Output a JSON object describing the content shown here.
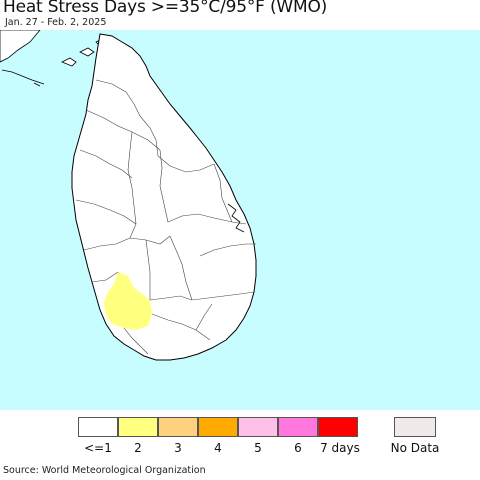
{
  "header": {
    "title": "Heat Stress Days >=35°C/95°F (WMO)",
    "date_range": "Jan. 27 - Feb. 2, 2025"
  },
  "legend": {
    "items": [
      {
        "label": "<=1",
        "color": "#ffffff"
      },
      {
        "label": "2",
        "color": "#ffff80"
      },
      {
        "label": "3",
        "color": "#ffd080"
      },
      {
        "label": "4",
        "color": "#ffaa00"
      },
      {
        "label": "5",
        "color": "#ffc0e8"
      },
      {
        "label": "6",
        "color": "#ff78e0"
      },
      {
        "label": "7 days",
        "color": "#ff0000"
      }
    ],
    "no_data": {
      "label": "No Data",
      "color": "#f0eaea"
    }
  },
  "colors": {
    "ocean": "#c8fdff",
    "land": "#ffffff",
    "highlight": "#ffff80"
  },
  "footer": {
    "source": "Source: World Meteorological Organization"
  }
}
